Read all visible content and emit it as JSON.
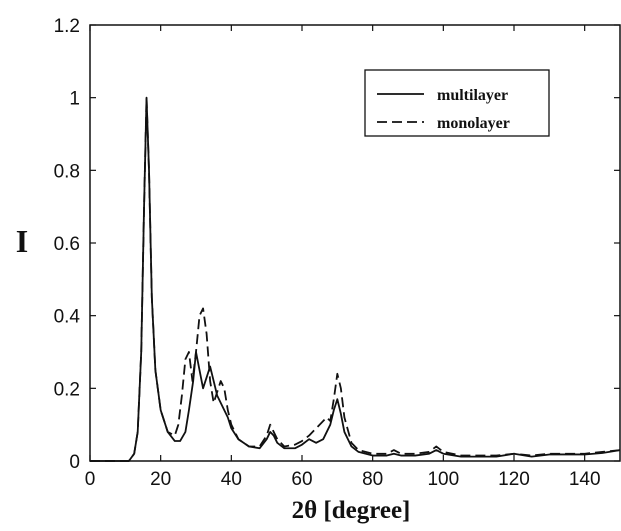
{
  "chart_data": {
    "type": "line",
    "title": "",
    "xlabel": "2θ [degree]",
    "ylabel": "I",
    "xlim": [
      0,
      150
    ],
    "ylim": [
      0,
      1.2
    ],
    "xticks": [
      0,
      20,
      40,
      60,
      80,
      100,
      120,
      140
    ],
    "yticks": [
      0,
      0.2,
      0.4,
      0.6,
      0.8,
      1,
      1.2
    ],
    "xtick_labels": [
      "0",
      "20",
      "40",
      "60",
      "80",
      "100",
      "120",
      "140"
    ],
    "ytick_labels": [
      "0",
      "0.2",
      "0.4",
      "0.6",
      "0.8",
      "1",
      "1.2"
    ],
    "grid": false,
    "legend_position": "top-right",
    "series": [
      {
        "name": "multilayer",
        "style": "solid",
        "color": "#111111",
        "x": [
          0,
          11,
          12.5,
          13.5,
          14.5,
          15.3,
          16,
          16.7,
          17.5,
          18.5,
          20,
          22,
          24,
          25.5,
          27,
          28,
          29.2,
          30,
          31,
          32,
          33,
          34,
          35,
          36,
          37,
          38,
          39,
          40,
          42,
          45,
          48,
          50,
          51,
          52,
          53,
          55,
          58,
          60,
          62,
          64,
          66,
          68,
          69,
          70,
          71,
          72,
          74,
          76,
          80,
          84,
          86,
          88,
          92,
          96,
          98,
          100,
          105,
          110,
          115,
          120,
          125,
          130,
          135,
          140,
          145,
          150
        ],
        "y": [
          0,
          0,
          0.02,
          0.08,
          0.3,
          0.7,
          1.0,
          0.8,
          0.45,
          0.25,
          0.14,
          0.08,
          0.055,
          0.055,
          0.08,
          0.14,
          0.22,
          0.3,
          0.25,
          0.2,
          0.23,
          0.26,
          0.22,
          0.18,
          0.16,
          0.14,
          0.12,
          0.09,
          0.06,
          0.04,
          0.035,
          0.06,
          0.08,
          0.07,
          0.05,
          0.035,
          0.035,
          0.045,
          0.06,
          0.05,
          0.06,
          0.1,
          0.14,
          0.17,
          0.13,
          0.08,
          0.04,
          0.025,
          0.015,
          0.015,
          0.02,
          0.015,
          0.015,
          0.02,
          0.03,
          0.02,
          0.012,
          0.012,
          0.012,
          0.02,
          0.012,
          0.018,
          0.018,
          0.018,
          0.022,
          0.03
        ]
      },
      {
        "name": "monolayer",
        "style": "dashed",
        "color": "#111111",
        "x": [
          0,
          11,
          12.5,
          13.5,
          14.5,
          15.3,
          16,
          16.7,
          17.5,
          18.5,
          20,
          22,
          24,
          25,
          26,
          27,
          28,
          29,
          30,
          31,
          32,
          33,
          34,
          35,
          36,
          37,
          38,
          39,
          40,
          42,
          45,
          48,
          50,
          51,
          52,
          53,
          55,
          58,
          60,
          62,
          64,
          66,
          67,
          68,
          69,
          70,
          71,
          72,
          74,
          76,
          80,
          84,
          86,
          88,
          92,
          96,
          98,
          100,
          105,
          110,
          115,
          120,
          125,
          130,
          135,
          140,
          145,
          150
        ],
        "y": [
          0,
          0,
          0.02,
          0.08,
          0.3,
          0.7,
          1.0,
          0.8,
          0.45,
          0.25,
          0.14,
          0.08,
          0.07,
          0.1,
          0.18,
          0.28,
          0.3,
          0.22,
          0.3,
          0.4,
          0.42,
          0.35,
          0.22,
          0.16,
          0.19,
          0.22,
          0.2,
          0.14,
          0.1,
          0.06,
          0.04,
          0.04,
          0.07,
          0.1,
          0.08,
          0.06,
          0.04,
          0.045,
          0.055,
          0.07,
          0.09,
          0.11,
          0.12,
          0.11,
          0.17,
          0.24,
          0.2,
          0.12,
          0.05,
          0.03,
          0.02,
          0.02,
          0.03,
          0.02,
          0.02,
          0.025,
          0.04,
          0.025,
          0.015,
          0.015,
          0.015,
          0.02,
          0.015,
          0.02,
          0.02,
          0.02,
          0.025,
          0.03
        ]
      }
    ]
  }
}
